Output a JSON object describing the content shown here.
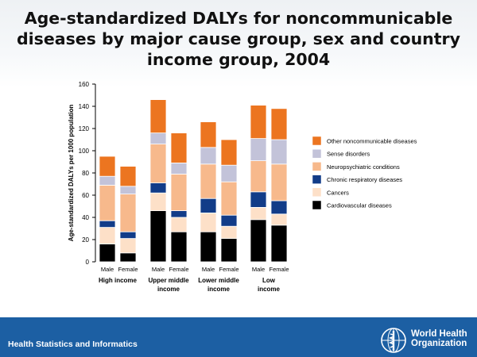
{
  "title_lines": [
    "Age-standardized DALYs for noncommunicable",
    "diseases by major cause group,  sex and country",
    "income group, 2004"
  ],
  "footer": {
    "unit_text": "Health Statistics and Informatics",
    "org_line1": "World Health",
    "org_line2": "Organization"
  },
  "chart_data": {
    "type": "bar",
    "stacked": true,
    "ylabel": "Age-standardized DALYs per 1000 population",
    "ylim": [
      0,
      160
    ],
    "yticks": [
      0,
      20,
      40,
      60,
      80,
      100,
      120,
      140,
      160
    ],
    "groups": [
      {
        "label": [
          "High income"
        ],
        "bars": [
          "Male",
          "Female"
        ]
      },
      {
        "label": [
          "Upper middle",
          "income"
        ],
        "bars": [
          "Male",
          "Female"
        ]
      },
      {
        "label": [
          "Lower middle",
          "income"
        ],
        "bars": [
          "Male",
          "Female"
        ]
      },
      {
        "label": [
          "Low",
          "income"
        ],
        "bars": [
          "Male",
          "Female"
        ]
      }
    ],
    "categories": [
      "High income Male",
      "High income Female",
      "Upper middle income Male",
      "Upper middle income Female",
      "Lower middle income Male",
      "Lower middle income Female",
      "Low income Male",
      "Low income Female"
    ],
    "series": [
      {
        "name": "Cardiovascular diseases",
        "color": "#000000",
        "values": [
          16,
          8,
          46,
          27,
          27,
          21,
          38,
          33
        ]
      },
      {
        "name": "Cancers",
        "color": "#fde0c8",
        "values": [
          15,
          13,
          16,
          13,
          17,
          11,
          11,
          10
        ]
      },
      {
        "name": "Chronic respiratory diseases",
        "color": "#123c88",
        "values": [
          6,
          6,
          9,
          6,
          13,
          10,
          14,
          12
        ]
      },
      {
        "name": "Neuropsychiatric conditions",
        "color": "#f7b98c",
        "values": [
          32,
          34,
          35,
          33,
          31,
          30,
          28,
          33
        ]
      },
      {
        "name": "Sense disorders",
        "color": "#c3c3d9",
        "values": [
          8,
          7,
          10,
          10,
          15,
          15,
          20,
          22
        ]
      },
      {
        "name": "Other noncommunicable diseases",
        "color": "#ec7520",
        "values": [
          18,
          18,
          30,
          27,
          23,
          23,
          30,
          28
        ]
      }
    ],
    "legend_position": "right"
  }
}
